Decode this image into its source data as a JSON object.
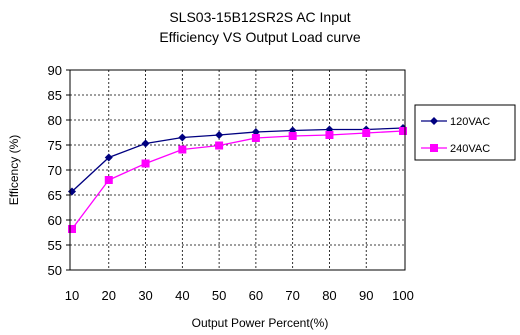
{
  "chart_data": {
    "type": "line",
    "title_lines": [
      "SLS03-15B12SR2S  AC Input",
      "Efficiency VS Output Load curve"
    ],
    "xlabel": "Output Power Percent(%)",
    "ylabel": "Efficency (%)",
    "x": [
      10,
      20,
      30,
      40,
      50,
      60,
      70,
      80,
      90,
      100
    ],
    "x_tick_labels": [
      "10",
      "20",
      "30",
      "40",
      "50",
      "60",
      "70",
      "80",
      "90",
      "100"
    ],
    "ylim": [
      50,
      90
    ],
    "y_ticks": [
      50,
      55,
      60,
      65,
      70,
      75,
      80,
      85,
      90
    ],
    "y_tick_labels": [
      "50",
      "55",
      "60",
      "65",
      "70",
      "75",
      "80",
      "85",
      "90"
    ],
    "grid": true,
    "legend_position": "right",
    "series": [
      {
        "name": "120VAC",
        "color": "#000080",
        "marker": "diamond",
        "values": [
          65.7,
          72.5,
          75.3,
          76.5,
          77.0,
          77.6,
          77.9,
          78.1,
          78.1,
          78.4
        ]
      },
      {
        "name": "240VAC",
        "color": "#ff00ff",
        "marker": "square",
        "values": [
          58.2,
          68.0,
          71.3,
          74.1,
          74.9,
          76.4,
          76.8,
          77.0,
          77.4,
          77.8
        ]
      }
    ]
  }
}
